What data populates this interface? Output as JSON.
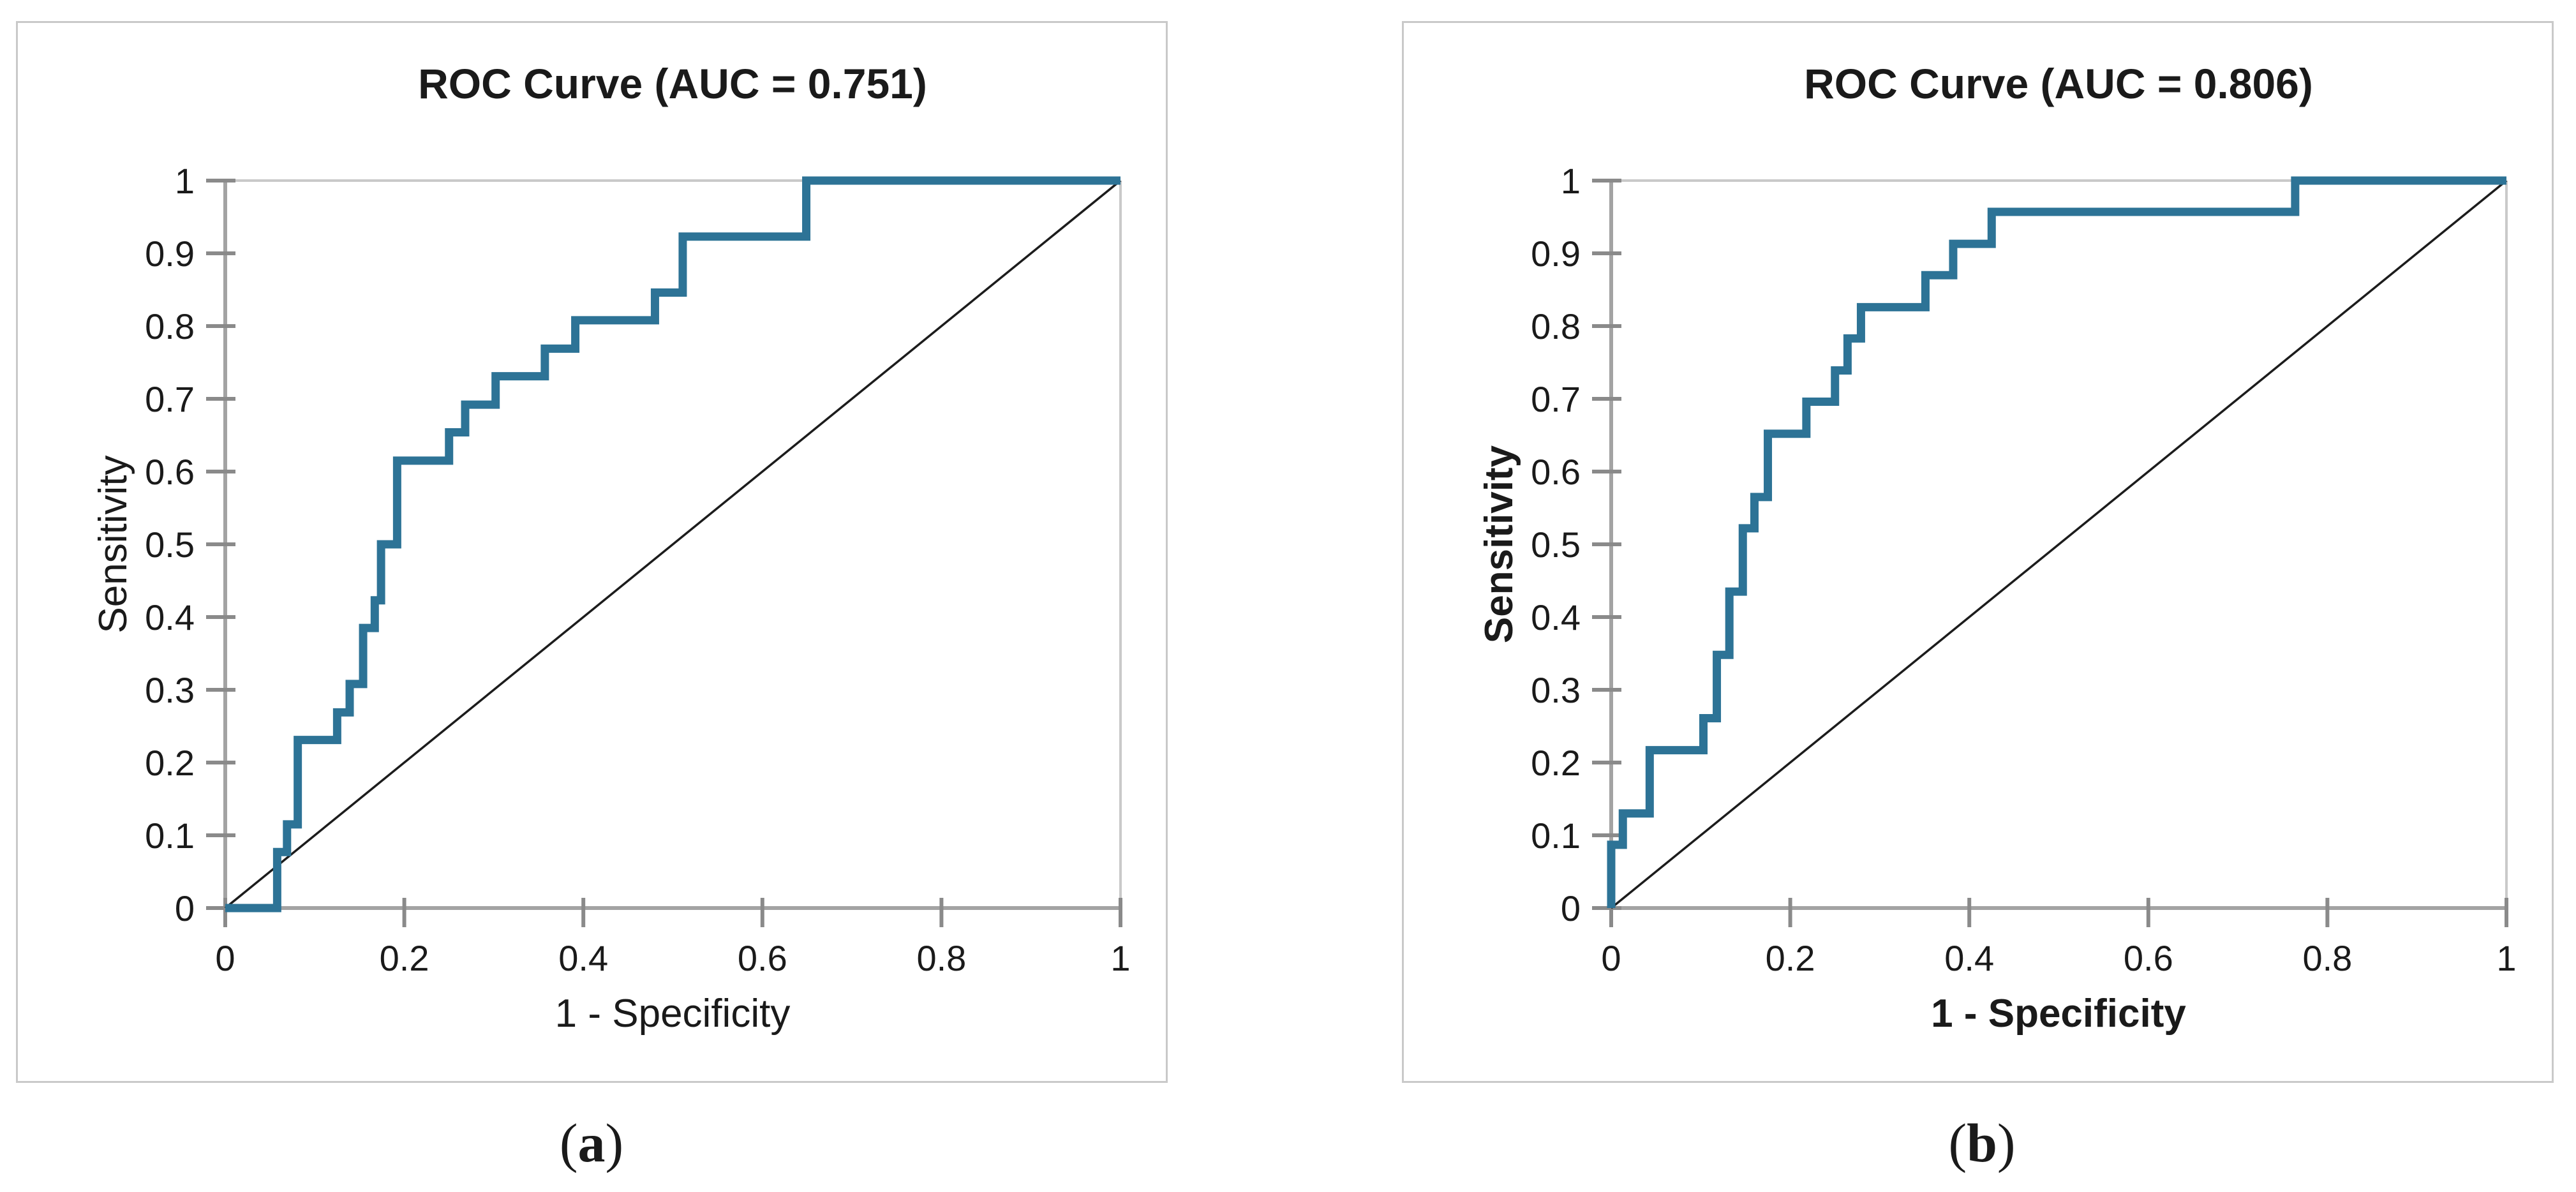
{
  "colors": {
    "curve": "#2d7396",
    "diagonal": "#1c1c1c",
    "axis_line": "#a3a3a3",
    "tick_mark": "#8a8a8a",
    "plot_border": "#c9c9c9",
    "panel_border": "#c9c9c9",
    "text": "#1a1a1a"
  },
  "chart_data": [
    {
      "type": "line",
      "subtype": "roc-step-curve",
      "panel": "a",
      "title": "ROC Curve (AUC = 0.751)",
      "auc": 0.751,
      "xlabel": "1 - Specificity",
      "ylabel": "Sensitivity",
      "axis_labels_bold": false,
      "caption": {
        "open": "(",
        "letter": "a",
        "close": ")"
      },
      "xlim": [
        0,
        1
      ],
      "ylim": [
        0,
        1
      ],
      "grid": "top-and-right-border-only",
      "legend": "none",
      "x_ticks": [
        0,
        0.2,
        0.4,
        0.6,
        0.8,
        1
      ],
      "x_tick_labels": [
        "0",
        "0.2",
        "0.4",
        "0.6",
        "0.8",
        "1"
      ],
      "y_ticks": [
        0,
        0.1,
        0.2,
        0.3,
        0.4,
        0.5,
        0.6,
        0.7,
        0.8,
        0.9,
        1
      ],
      "y_tick_labels": [
        "0",
        "0.1",
        "0.2",
        "0.3",
        "0.4",
        "0.5",
        "0.6",
        "0.7",
        "0.8",
        "0.9",
        "1"
      ],
      "series": [
        {
          "name": "ROC curve",
          "color": "#2d7396",
          "width": 13,
          "points": [
            [
              0,
              0
            ],
            [
              0.058,
              0
            ],
            [
              0.058,
              0.077
            ],
            [
              0.069,
              0.077
            ],
            [
              0.069,
              0.115
            ],
            [
              0.081,
              0.115
            ],
            [
              0.081,
              0.231
            ],
            [
              0.125,
              0.231
            ],
            [
              0.125,
              0.269
            ],
            [
              0.139,
              0.269
            ],
            [
              0.139,
              0.308
            ],
            [
              0.154,
              0.308
            ],
            [
              0.154,
              0.385
            ],
            [
              0.167,
              0.385
            ],
            [
              0.167,
              0.423
            ],
            [
              0.174,
              0.423
            ],
            [
              0.174,
              0.5
            ],
            [
              0.192,
              0.5
            ],
            [
              0.192,
              0.615
            ],
            [
              0.25,
              0.615
            ],
            [
              0.25,
              0.654
            ],
            [
              0.268,
              0.654
            ],
            [
              0.268,
              0.692
            ],
            [
              0.302,
              0.692
            ],
            [
              0.302,
              0.731
            ],
            [
              0.357,
              0.731
            ],
            [
              0.357,
              0.769
            ],
            [
              0.391,
              0.769
            ],
            [
              0.391,
              0.808
            ],
            [
              0.48,
              0.808
            ],
            [
              0.48,
              0.846
            ],
            [
              0.511,
              0.846
            ],
            [
              0.511,
              0.923
            ],
            [
              0.649,
              0.923
            ],
            [
              0.649,
              1
            ],
            [
              1,
              1
            ]
          ]
        },
        {
          "name": "Chance diagonal",
          "color": "#1c1c1c",
          "width": 3.5,
          "points": [
            [
              0,
              0
            ],
            [
              1,
              1
            ]
          ]
        }
      ]
    },
    {
      "type": "line",
      "subtype": "roc-step-curve",
      "panel": "b",
      "title": "ROC Curve (AUC = 0.806)",
      "auc": 0.806,
      "xlabel": "1 - Specificity",
      "ylabel": "Sensitivity",
      "axis_labels_bold": true,
      "caption": {
        "open": "(",
        "letter": "b",
        "close": ")"
      },
      "xlim": [
        0,
        1
      ],
      "ylim": [
        0,
        1
      ],
      "grid": "top-and-right-border-only",
      "legend": "none",
      "x_ticks": [
        0,
        0.2,
        0.4,
        0.6,
        0.8,
        1
      ],
      "x_tick_labels": [
        "0",
        "0.2",
        "0.4",
        "0.6",
        "0.8",
        "1"
      ],
      "y_ticks": [
        0,
        0.1,
        0.2,
        0.3,
        0.4,
        0.5,
        0.6,
        0.7,
        0.8,
        0.9,
        1
      ],
      "y_tick_labels": [
        "0",
        "0.1",
        "0.2",
        "0.3",
        "0.4",
        "0.5",
        "0.6",
        "0.7",
        "0.8",
        "0.9",
        "1"
      ],
      "series": [
        {
          "name": "ROC curve",
          "color": "#2d7396",
          "width": 13,
          "points": [
            [
              0,
              0
            ],
            [
              0,
              0.087
            ],
            [
              0.013,
              0.087
            ],
            [
              0.013,
              0.13
            ],
            [
              0.043,
              0.13
            ],
            [
              0.043,
              0.217
            ],
            [
              0.103,
              0.217
            ],
            [
              0.103,
              0.261
            ],
            [
              0.118,
              0.261
            ],
            [
              0.118,
              0.348
            ],
            [
              0.132,
              0.348
            ],
            [
              0.132,
              0.435
            ],
            [
              0.147,
              0.435
            ],
            [
              0.147,
              0.522
            ],
            [
              0.16,
              0.522
            ],
            [
              0.16,
              0.565
            ],
            [
              0.175,
              0.565
            ],
            [
              0.175,
              0.652
            ],
            [
              0.218,
              0.652
            ],
            [
              0.218,
              0.696
            ],
            [
              0.25,
              0.696
            ],
            [
              0.25,
              0.739
            ],
            [
              0.264,
              0.739
            ],
            [
              0.264,
              0.783
            ],
            [
              0.279,
              0.783
            ],
            [
              0.279,
              0.826
            ],
            [
              0.351,
              0.826
            ],
            [
              0.351,
              0.87
            ],
            [
              0.382,
              0.87
            ],
            [
              0.382,
              0.913
            ],
            [
              0.425,
              0.913
            ],
            [
              0.425,
              0.957
            ],
            [
              0.764,
              0.957
            ],
            [
              0.764,
              1
            ],
            [
              1,
              1
            ]
          ]
        },
        {
          "name": "Chance diagonal",
          "color": "#1c1c1c",
          "width": 3.5,
          "points": [
            [
              0,
              0
            ],
            [
              1,
              1
            ]
          ]
        }
      ]
    }
  ]
}
